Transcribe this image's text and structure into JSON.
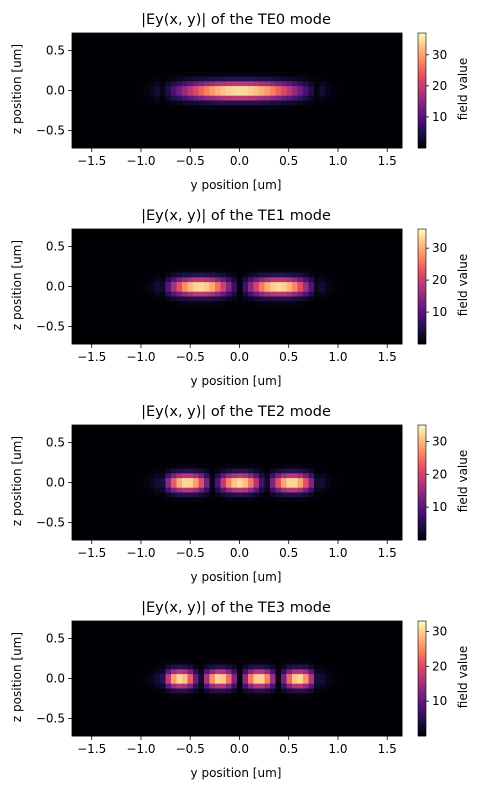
{
  "chart_data": [
    {
      "type": "heatmap",
      "title": "|Ey(x, y)| of the TE0 mode",
      "xlabel": "y position [um]",
      "ylabel": "z position [um]",
      "colorbar_label": "field value",
      "colormap": "magma",
      "xlim": [
        -1.7,
        1.65
      ],
      "ylim": [
        -0.72,
        0.72
      ],
      "xticks": [
        -1.5,
        -1.0,
        -0.5,
        0.0,
        0.5,
        1.0,
        1.5
      ],
      "xtick_labels": [
        "−1.5",
        "−1.0",
        "−0.5",
        "0.0",
        "0.5",
        "1.0",
        "1.5"
      ],
      "yticks": [
        -0.5,
        0.0,
        0.5
      ],
      "ytick_labels": [
        "−0.5",
        "0.0",
        "0.5"
      ],
      "value_range": [
        0,
        37
      ],
      "colorbar_ticks": [
        10,
        20,
        30
      ],
      "colorbar_tick_labels": [
        "10",
        "20",
        "30"
      ],
      "mode_order": 0,
      "lobe_centers_y": [
        0.0
      ],
      "waveguide_half_width_y": 0.8,
      "peak_value": 37
    },
    {
      "type": "heatmap",
      "title": "|Ey(x, y)| of the TE1 mode",
      "xlabel": "y position [um]",
      "ylabel": "z position [um]",
      "colorbar_label": "field value",
      "colormap": "magma",
      "xlim": [
        -1.7,
        1.65
      ],
      "ylim": [
        -0.72,
        0.72
      ],
      "xticks": [
        -1.5,
        -1.0,
        -0.5,
        0.0,
        0.5,
        1.0,
        1.5
      ],
      "xtick_labels": [
        "−1.5",
        "−1.0",
        "−0.5",
        "0.0",
        "0.5",
        "1.0",
        "1.5"
      ],
      "yticks": [
        -0.5,
        0.0,
        0.5
      ],
      "ytick_labels": [
        "−0.5",
        "0.0",
        "0.5"
      ],
      "value_range": [
        0,
        36
      ],
      "colorbar_ticks": [
        10,
        20,
        30
      ],
      "colorbar_tick_labels": [
        "10",
        "20",
        "30"
      ],
      "mode_order": 1,
      "lobe_centers_y": [
        -0.42,
        0.42
      ],
      "waveguide_half_width_y": 0.8,
      "peak_value": 36
    },
    {
      "type": "heatmap",
      "title": "|Ey(x, y)| of the TE2 mode",
      "xlabel": "y position [um]",
      "ylabel": "z position [um]",
      "colorbar_label": "field value",
      "colormap": "magma",
      "xlim": [
        -1.7,
        1.65
      ],
      "ylim": [
        -0.72,
        0.72
      ],
      "xticks": [
        -1.5,
        -1.0,
        -0.5,
        0.0,
        0.5,
        1.0,
        1.5
      ],
      "xtick_labels": [
        "−1.5",
        "−1.0",
        "−0.5",
        "0.0",
        "0.5",
        "1.0",
        "1.5"
      ],
      "yticks": [
        -0.5,
        0.0,
        0.5
      ],
      "ytick_labels": [
        "−0.5",
        "0.0",
        "0.5"
      ],
      "value_range": [
        0,
        35
      ],
      "colorbar_ticks": [
        10,
        20,
        30
      ],
      "colorbar_tick_labels": [
        "10",
        "20",
        "30"
      ],
      "mode_order": 2,
      "lobe_centers_y": [
        -0.58,
        0.0,
        0.58
      ],
      "waveguide_half_width_y": 0.8,
      "peak_value": 35
    },
    {
      "type": "heatmap",
      "title": "|Ey(x, y)| of the TE3 mode",
      "xlabel": "y position [um]",
      "ylabel": "z position [um]",
      "colorbar_label": "field value",
      "colormap": "magma",
      "xlim": [
        -1.7,
        1.65
      ],
      "ylim": [
        -0.72,
        0.72
      ],
      "xticks": [
        -1.5,
        -1.0,
        -0.5,
        0.0,
        0.5,
        1.0,
        1.5
      ],
      "xtick_labels": [
        "−1.5",
        "−1.0",
        "−0.5",
        "0.0",
        "0.5",
        "1.0",
        "1.5"
      ],
      "yticks": [
        -0.5,
        0.0,
        0.5
      ],
      "ytick_labels": [
        "−0.5",
        "0.0",
        "0.5"
      ],
      "value_range": [
        0,
        33
      ],
      "colorbar_ticks": [
        10,
        20,
        30
      ],
      "colorbar_tick_labels": [
        "10",
        "20",
        "30"
      ],
      "mode_order": 3,
      "lobe_centers_y": [
        -0.62,
        -0.21,
        0.21,
        0.62
      ],
      "waveguide_half_width_y": 0.8,
      "peak_value": 33
    }
  ]
}
